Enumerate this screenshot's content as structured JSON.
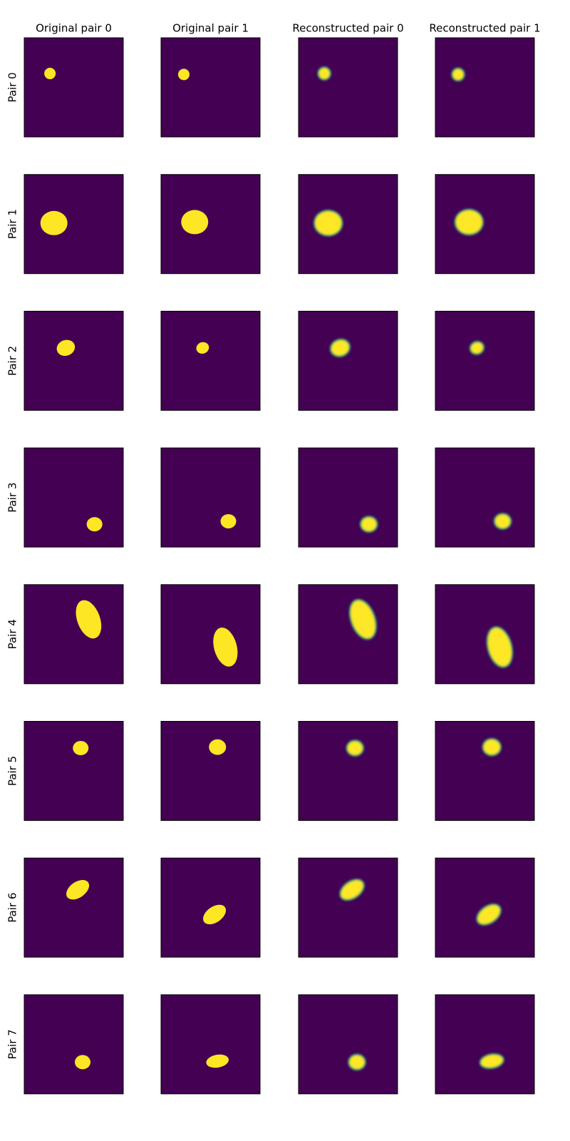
{
  "columns": [
    "Original pair 0",
    "Original pair 1",
    "Reconstructed pair 0",
    "Reconstructed pair 1"
  ],
  "rows": [
    "Pair 0",
    "Pair 1",
    "Pair 2",
    "Pair 3",
    "Pair 4",
    "Pair 5",
    "Pair 6",
    "Pair 7"
  ]
}
